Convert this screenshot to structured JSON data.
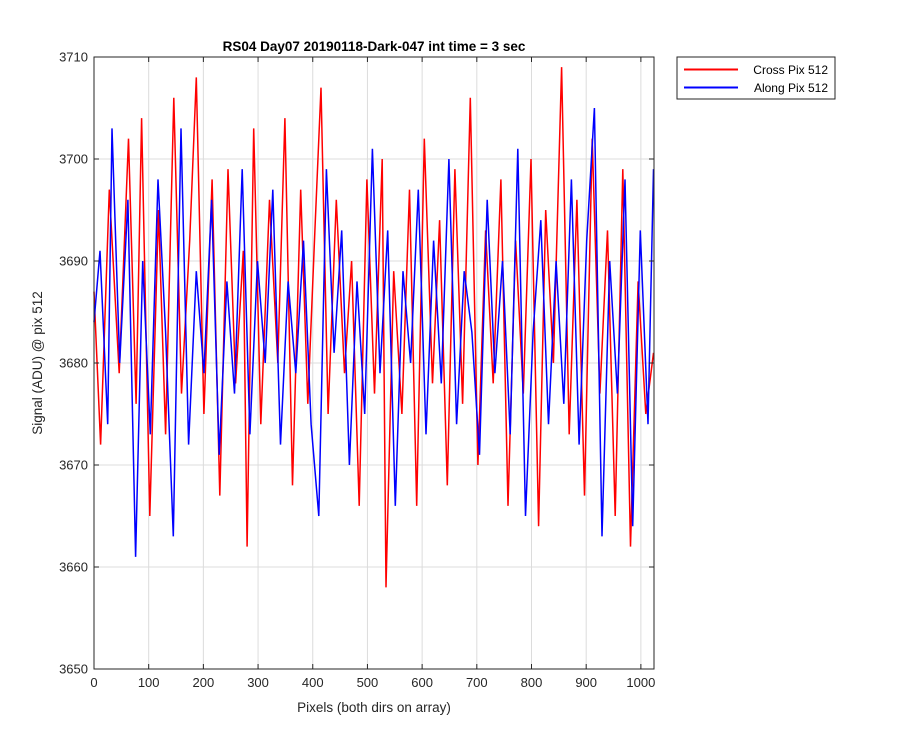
{
  "chart_data": {
    "type": "line",
    "title": "RS04 Day07 20190118-Dark-047 int time = 3 sec",
    "xlabel": "Pixels (both dirs on array)",
    "ylabel": "Signal (ADU) @ pix 512",
    "xlim": [
      0,
      1024
    ],
    "ylim": [
      3650,
      3710
    ],
    "xticks": [
      "0",
      "100",
      "200",
      "300",
      "400",
      "500",
      "600",
      "700",
      "800",
      "900",
      "1000"
    ],
    "yticks": [
      "3650",
      "3660",
      "3670",
      "3680",
      "3690",
      "3700",
      "3710"
    ],
    "grid": true,
    "legend_position": "outside-top-right",
    "series": [
      {
        "name": "Cross Pix 512",
        "color": "#ff0000",
        "x": [
          0,
          12,
          28,
          46,
          63,
          77,
          87,
          102,
          118,
          131,
          146,
          160,
          175,
          187,
          201,
          216,
          230,
          245,
          259,
          273,
          280,
          292,
          305,
          321,
          336,
          349,
          363,
          378,
          391,
          404,
          415,
          428,
          443,
          458,
          471,
          485,
          499,
          513,
          527,
          534,
          548,
          563,
          577,
          590,
          604,
          619,
          632,
          646,
          660,
          674,
          688,
          702,
          716,
          730,
          744,
          757,
          771,
          785,
          799,
          813,
          826,
          840,
          855,
          869,
          883,
          897,
          911,
          925,
          939,
          953,
          967,
          981,
          995,
          1009,
          1023
        ],
        "y": [
          3687,
          3672,
          3697,
          3679,
          3702,
          3676,
          3704,
          3665,
          3695,
          3673,
          3706,
          3677,
          3692,
          3708,
          3675,
          3698,
          3667,
          3699,
          3678,
          3691,
          3662,
          3703,
          3674,
          3696,
          3680,
          3704,
          3668,
          3697,
          3676,
          3693,
          3707,
          3675,
          3696,
          3679,
          3690,
          3666,
          3698,
          3677,
          3700,
          3658,
          3689,
          3675,
          3697,
          3666,
          3702,
          3678,
          3694,
          3668,
          3699,
          3676,
          3706,
          3670,
          3693,
          3678,
          3698,
          3666,
          3692,
          3677,
          3700,
          3664,
          3695,
          3680,
          3709,
          3673,
          3696,
          3667,
          3702,
          3677,
          3693,
          3665,
          3699,
          3662,
          3688,
          3675,
          3681
        ]
      },
      {
        "name": "Along Pix 512",
        "color": "#0000ff",
        "x": [
          0,
          11,
          25,
          33,
          47,
          62,
          76,
          89,
          103,
          117,
          131,
          145,
          159,
          173,
          187,
          201,
          215,
          229,
          243,
          257,
          271,
          285,
          299,
          313,
          327,
          341,
          355,
          369,
          383,
          397,
          411,
          425,
          439,
          453,
          467,
          481,
          495,
          509,
          523,
          537,
          551,
          565,
          579,
          593,
          607,
          621,
          635,
          649,
          663,
          677,
          691,
          705,
          719,
          733,
          747,
          761,
          775,
          789,
          803,
          817,
          831,
          845,
          859,
          873,
          887,
          901,
          915,
          929,
          943,
          957,
          971,
          985,
          999,
          1013,
          1023
        ],
        "y": [
          3684,
          3691,
          3674,
          3703,
          3680,
          3696,
          3661,
          3690,
          3673,
          3698,
          3683,
          3663,
          3703,
          3672,
          3689,
          3679,
          3696,
          3671,
          3688,
          3677,
          3699,
          3673,
          3690,
          3680,
          3697,
          3672,
          3688,
          3679,
          3692,
          3674,
          3665,
          3699,
          3681,
          3693,
          3670,
          3688,
          3675,
          3701,
          3679,
          3693,
          3666,
          3689,
          3680,
          3697,
          3673,
          3692,
          3678,
          3700,
          3674,
          3689,
          3683,
          3671,
          3696,
          3679,
          3690,
          3673,
          3701,
          3665,
          3683,
          3694,
          3674,
          3690,
          3676,
          3698,
          3672,
          3692,
          3705,
          3663,
          3690,
          3677,
          3698,
          3664,
          3693,
          3674,
          3699
        ]
      }
    ]
  }
}
